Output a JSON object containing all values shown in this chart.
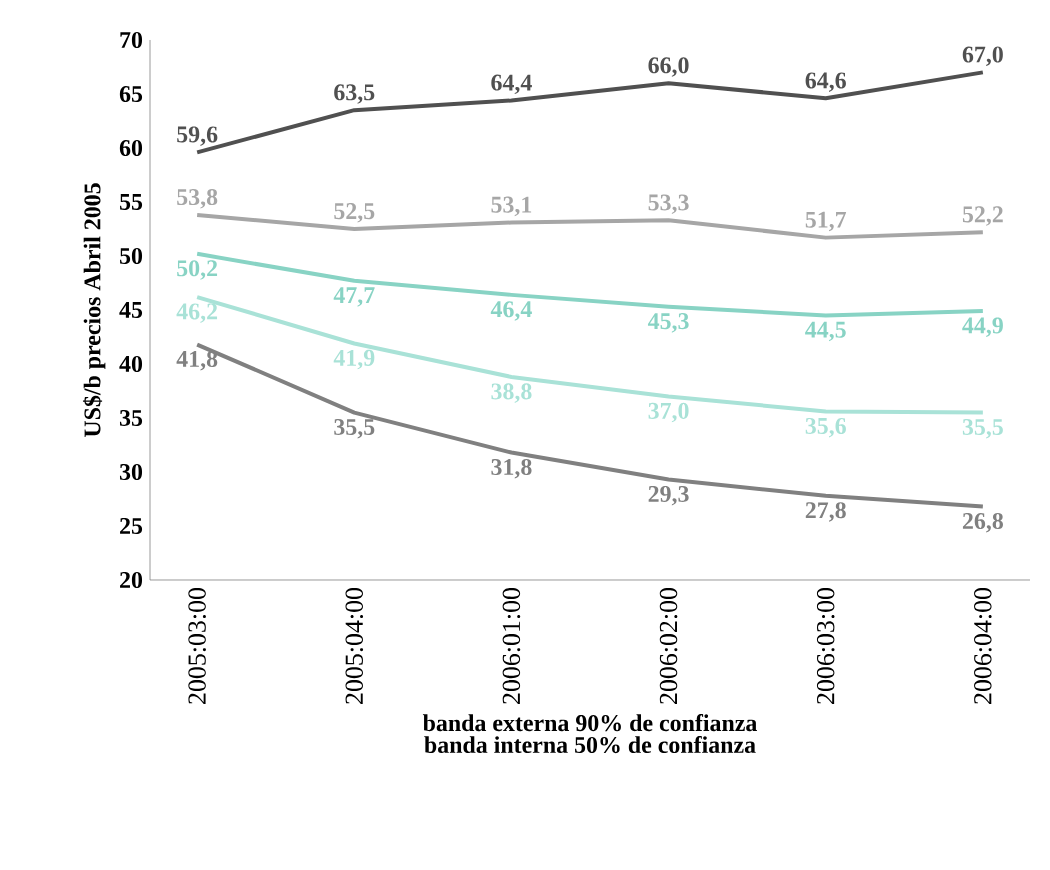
{
  "chart_data": {
    "type": "line",
    "ylabel": "US$/b precios Abril 2005",
    "xlabel": "banda externa 90% de confianza",
    "annotations": [
      "banda interna 50% de confianza"
    ],
    "categories": [
      "2005:03:00",
      "2005:04:00",
      "2006:01:00",
      "2006:02:00",
      "2006:03:00",
      "2006:04:00"
    ],
    "ylim": [
      20,
      70
    ],
    "yticks": [
      20,
      25,
      30,
      35,
      40,
      45,
      50,
      55,
      60,
      65,
      70
    ],
    "grid": false,
    "marker": "none",
    "line_style": "solid",
    "series": [
      {
        "color": "#505050",
        "values": [
          59.6,
          63.5,
          64.4,
          66.0,
          64.6,
          67.0
        ],
        "value_labels": [
          "59,6",
          "63,5",
          "64,4",
          "66,0",
          "64,6",
          "67,0"
        ]
      },
      {
        "color": "#a6a6a6",
        "values": [
          53.8,
          52.5,
          53.1,
          53.3,
          51.7,
          52.2
        ],
        "value_labels": [
          "53,8",
          "52,5",
          "53,1",
          "53,3",
          "51,7",
          "52,2"
        ]
      },
      {
        "color": "#88d3c4",
        "values": [
          50.2,
          47.7,
          46.4,
          45.3,
          44.5,
          44.9
        ],
        "value_labels": [
          "50,2",
          "47,7",
          "46,4",
          "45,3",
          "44,5",
          "44,9"
        ]
      },
      {
        "color": "#a9e2d7",
        "values": [
          46.2,
          41.9,
          38.8,
          37.0,
          35.6,
          35.5
        ],
        "value_labels": [
          "46,2",
          "41,9",
          "38,8",
          "37,0",
          "35,6",
          "35,5"
        ]
      },
      {
        "color": "#808080",
        "values": [
          41.8,
          35.5,
          31.8,
          29.3,
          27.8,
          26.8
        ],
        "value_labels": [
          "41,8",
          "35,5",
          "31,8",
          "29,3",
          "27,8",
          "26,8"
        ]
      }
    ]
  }
}
